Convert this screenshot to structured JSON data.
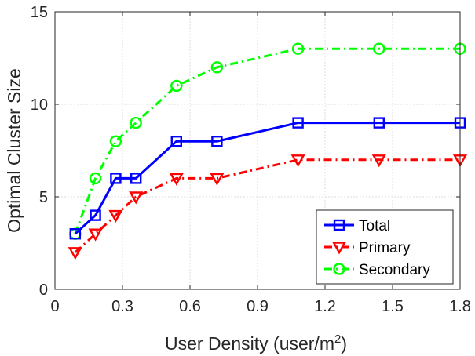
{
  "chart_data": {
    "type": "line",
    "xlabel": "User Density (user/m",
    "xlabel_superscript": "2",
    "xlabel_suffix": ")",
    "ylabel": "Optimal Cluster Size",
    "xlim": [
      0,
      1.8
    ],
    "ylim": [
      0,
      15
    ],
    "xticks": [
      0,
      0.3,
      0.6,
      0.9,
      1.2,
      1.5,
      1.8
    ],
    "xtick_labels": [
      "0",
      "0.3",
      "0.6",
      "0.9",
      "1.2",
      "1.5",
      "1.8"
    ],
    "yticks": [
      0,
      5,
      10,
      15
    ],
    "ytick_labels": [
      "0",
      "5",
      "10",
      "15"
    ],
    "grid": true,
    "legend_position": "bottom-right",
    "x": [
      0.09,
      0.18,
      0.27,
      0.36,
      0.54,
      0.72,
      1.08,
      1.44,
      1.8
    ],
    "series": [
      {
        "name": "Total",
        "values": [
          3,
          4,
          6,
          6,
          8,
          8,
          9,
          9,
          9
        ],
        "color": "#0000ff",
        "line_style": "solid",
        "marker": "square"
      },
      {
        "name": "Primary",
        "values": [
          2,
          3,
          4,
          5,
          6,
          6,
          7,
          7,
          7
        ],
        "color": "#ff0000",
        "line_style": "dash-dot",
        "marker": "triangle-down"
      },
      {
        "name": "Secondary",
        "values": [
          3,
          6,
          8,
          9,
          11,
          12,
          13,
          13,
          13
        ],
        "color": "#00ff00",
        "line_style": "dash-dot",
        "marker": "circle"
      }
    ]
  }
}
